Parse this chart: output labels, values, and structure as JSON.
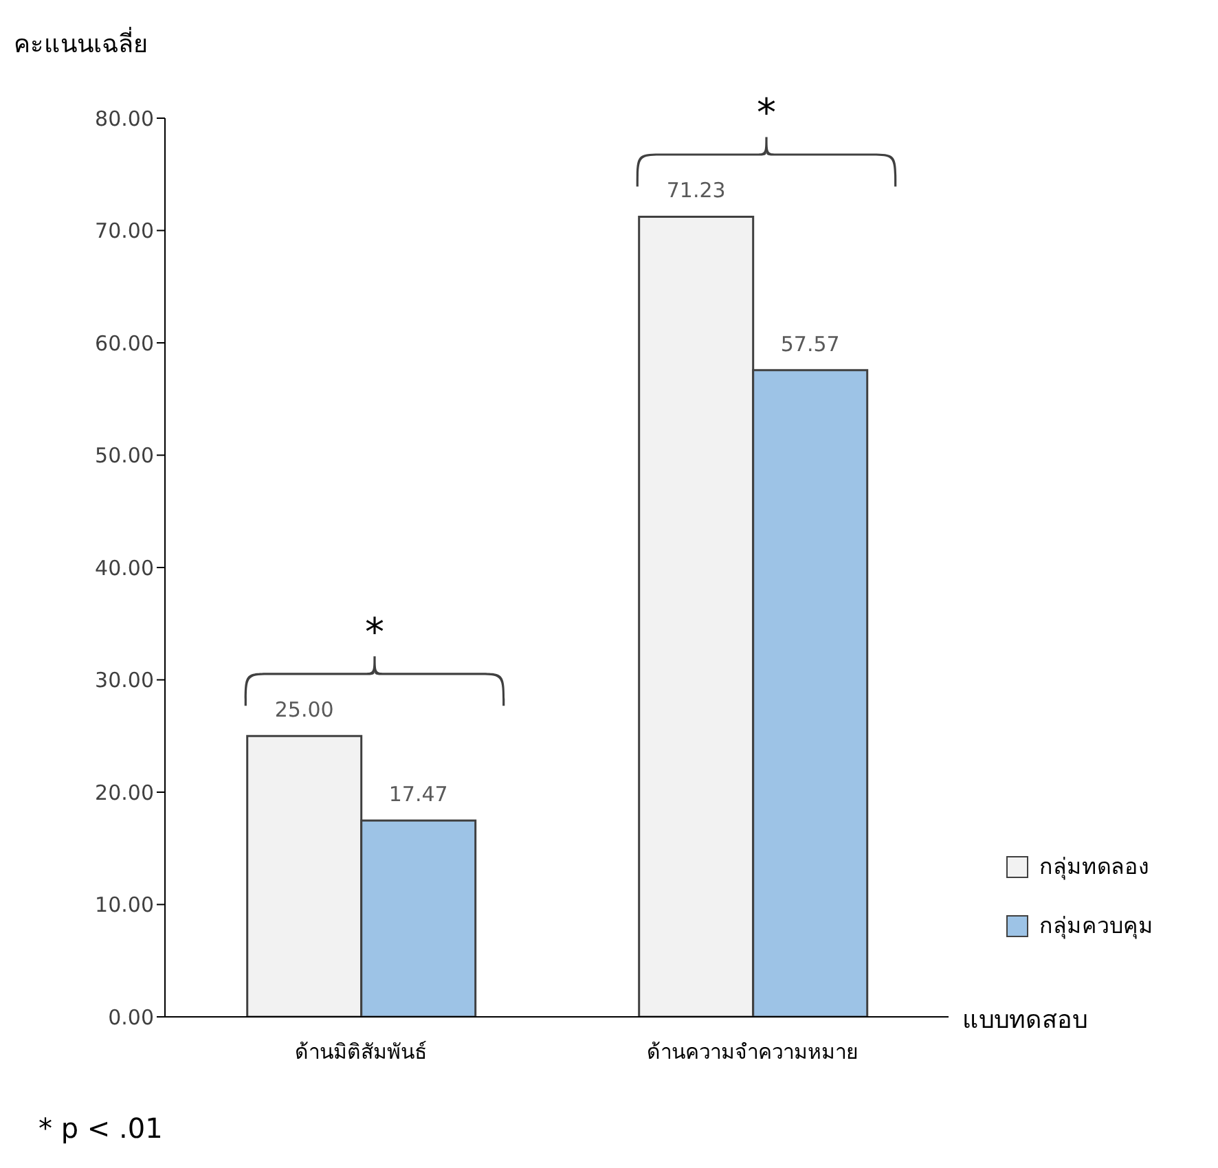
{
  "chart_data": {
    "type": "bar",
    "ylabel": "คะแนนเฉลี่ย",
    "xlabel": "แบบทดสอบ",
    "categories": [
      "ด้านมิติสัมพันธ์",
      "ด้านความจำความหมาย"
    ],
    "series": [
      {
        "name": "กลุ่มทดลอง",
        "color": "#f2f2f2",
        "values": [
          25.0,
          71.23
        ],
        "value_labels": [
          "25.00",
          "71.23"
        ]
      },
      {
        "name": "กลุ่มควบคุม",
        "color": "#9dc3e6",
        "values": [
          17.47,
          57.57
        ],
        "value_labels": [
          "17.47",
          "57.57"
        ]
      }
    ],
    "ylim": [
      0,
      80
    ],
    "yticks": [
      {
        "value": 0,
        "label": "0.00"
      },
      {
        "value": 10,
        "label": "10.00"
      },
      {
        "value": 20,
        "label": "20.00"
      },
      {
        "value": 30,
        "label": "30.00"
      },
      {
        "value": 40,
        "label": "40.00"
      },
      {
        "value": 50,
        "label": "50.00"
      },
      {
        "value": 60,
        "label": "60.00"
      },
      {
        "value": 70,
        "label": "70.00"
      },
      {
        "value": 80,
        "label": "80.00"
      }
    ],
    "legend": "right",
    "annotations": [
      "*",
      "*",
      "* p < .01"
    ]
  }
}
